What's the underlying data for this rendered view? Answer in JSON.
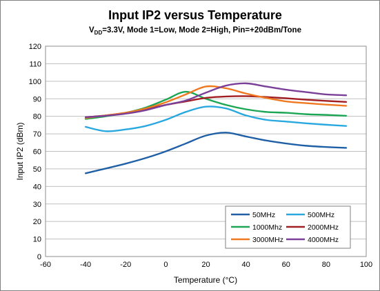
{
  "chart_data": {
    "type": "line",
    "title": "Input IP2 versus Temperature",
    "subtitle": {
      "prefix": "V",
      "subscript": "DD",
      "rest": "=3.3V, Mode 1=Low, Mode 2=High, Pin=+20dBm/Tone"
    },
    "xlabel": "Temperature (°C)",
    "ylabel": "Input IP2 (dBm)",
    "xlim": [
      -60,
      100
    ],
    "ylim": [
      0,
      120
    ],
    "xticks": [
      -60,
      -40,
      -20,
      0,
      20,
      40,
      60,
      80,
      100
    ],
    "yticks": [
      0,
      10,
      20,
      30,
      40,
      50,
      60,
      70,
      80,
      90,
      100,
      110,
      120
    ],
    "grid": "horizontal",
    "legend_position": "bottom-right",
    "series": [
      {
        "name": "50MHz",
        "color": "#1f5fa6",
        "x": [
          -40,
          -30,
          -20,
          -10,
          0,
          10,
          20,
          30,
          40,
          50,
          60,
          70,
          80,
          90
        ],
        "y": [
          47.5,
          50.2,
          53.0,
          56.2,
          60.0,
          64.5,
          69.0,
          70.7,
          68.5,
          66.2,
          64.5,
          63.2,
          62.5,
          62.0
        ]
      },
      {
        "name": "500MHz",
        "color": "#29a8e0",
        "x": [
          -40,
          -30,
          -20,
          -10,
          0,
          10,
          20,
          30,
          40,
          50,
          60,
          70,
          80,
          90
        ],
        "y": [
          74.0,
          71.5,
          72.5,
          74.5,
          78.0,
          82.5,
          85.5,
          84.5,
          80.5,
          78.0,
          77.0,
          76.0,
          75.2,
          74.5
        ]
      },
      {
        "name": "1000Mhz",
        "color": "#1aa653",
        "x": [
          -40,
          -30,
          -20,
          -10,
          0,
          10,
          20,
          30,
          40,
          50,
          60,
          70,
          80,
          90
        ],
        "y": [
          78.5,
          80.0,
          82.0,
          85.0,
          89.5,
          94.0,
          90.0,
          86.5,
          84.0,
          82.5,
          82.0,
          81.2,
          80.8,
          80.3
        ]
      },
      {
        "name": "2000MHz",
        "color": "#a11d22",
        "x": [
          -40,
          -30,
          -20,
          -10,
          0,
          10,
          20,
          30,
          40,
          50,
          60,
          70,
          80,
          90
        ],
        "y": [
          79.5,
          80.5,
          82.0,
          84.0,
          86.5,
          88.5,
          90.5,
          91.3,
          91.5,
          91.0,
          90.3,
          89.5,
          88.8,
          88.2
        ]
      },
      {
        "name": "3000MHz",
        "color": "#f0791f",
        "x": [
          -40,
          -30,
          -20,
          -10,
          0,
          10,
          20,
          30,
          40,
          50,
          60,
          70,
          80,
          90
        ],
        "y": [
          79.0,
          80.5,
          82.0,
          84.5,
          88.0,
          92.5,
          97.0,
          96.0,
          93.0,
          90.5,
          88.5,
          87.5,
          86.7,
          86.0
        ]
      },
      {
        "name": "4000MHz",
        "color": "#7a3f98",
        "x": [
          -40,
          -30,
          -20,
          -10,
          0,
          10,
          20,
          30,
          40,
          50,
          60,
          70,
          80,
          90
        ],
        "y": [
          79.5,
          80.3,
          81.5,
          83.5,
          86.5,
          89.0,
          93.5,
          97.5,
          98.8,
          97.0,
          95.2,
          93.8,
          92.5,
          92.0
        ]
      }
    ]
  }
}
